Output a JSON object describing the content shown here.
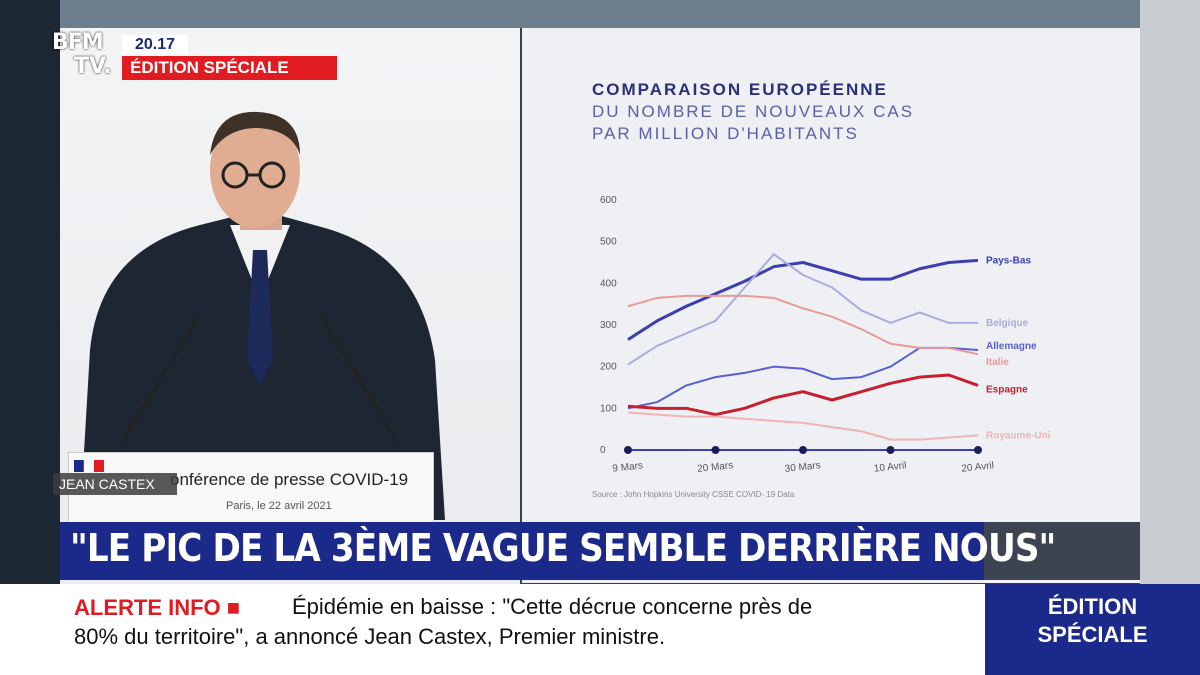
{
  "channel": {
    "logo_line1": "BFM",
    "logo_line2": "TV.",
    "time": "20.17",
    "edition": "ÉDITION SPÉCIALE"
  },
  "podium": {
    "title": "onférence de presse COVID-19",
    "date": "Paris, le 22 avril 2021"
  },
  "speaker_name": "JEAN CASTEX",
  "chart": {
    "title": "COMPARAISON EUROPÉENNE",
    "subtitle_1": "DU NOMBRE DE NOUVEAUX CAS",
    "subtitle_2": "PAR MILLION D'HABITANTS",
    "source": "Source : John Hopkins University CSSE COVID- 19 Data"
  },
  "chart_data": {
    "type": "line",
    "y_ticks": [
      "600",
      "500",
      "400",
      "300",
      "200",
      "100",
      "0"
    ],
    "ylim": [
      0,
      600
    ],
    "x_ticks": [
      "9 Mars",
      "20 Mars",
      "30 Mars",
      "10 Avril",
      "20 Avril"
    ],
    "x": [
      "9 Mars",
      "13 Mars",
      "17 Mars",
      "20 Mars",
      "24 Mars",
      "27 Mars",
      "30 Mars",
      "3 Avril",
      "6 Avril",
      "10 Avril",
      "14 Avril",
      "17 Avril",
      "20 Avril"
    ],
    "series": [
      {
        "name": "Pays-Bas",
        "color": "#3c3fb0",
        "values": [
          265,
          310,
          345,
          375,
          405,
          440,
          450,
          430,
          410,
          410,
          435,
          450,
          455
        ]
      },
      {
        "name": "Belgique",
        "color": "#a9acdf",
        "values": [
          205,
          250,
          280,
          310,
          390,
          470,
          420,
          390,
          335,
          305,
          330,
          305,
          305
        ]
      },
      {
        "name": "Allemagne",
        "color": "#5a5fd0",
        "values": [
          100,
          115,
          155,
          175,
          185,
          200,
          195,
          170,
          175,
          200,
          245,
          245,
          240
        ]
      },
      {
        "name": "Italie",
        "color": "#e89a9a",
        "values": [
          345,
          365,
          370,
          370,
          370,
          365,
          340,
          320,
          290,
          255,
          245,
          245,
          230
        ]
      },
      {
        "name": "Espagne",
        "color": "#c4202f",
        "values": [
          105,
          100,
          100,
          85,
          100,
          125,
          140,
          120,
          140,
          160,
          175,
          180,
          155
        ]
      },
      {
        "name": "Royaume-Uni",
        "color": "#f0b3b3",
        "values": [
          90,
          85,
          80,
          80,
          75,
          70,
          65,
          55,
          45,
          25,
          25,
          30,
          35
        ]
      }
    ]
  },
  "headline": "\"LE PIC DE LA 3ÈME VAGUE SEMBLE DERRIÈRE NOUS\"",
  "ticker": {
    "label": "ALERTE INFO",
    "line1": "Épidémie en baisse : \"Cette décrue concerne près de",
    "line2": "80% du territoire\", a annoncé Jean Castex, Premier ministre."
  },
  "edition_box": {
    "line1": "ÉDITION",
    "line2": "SPÉCIALE"
  }
}
